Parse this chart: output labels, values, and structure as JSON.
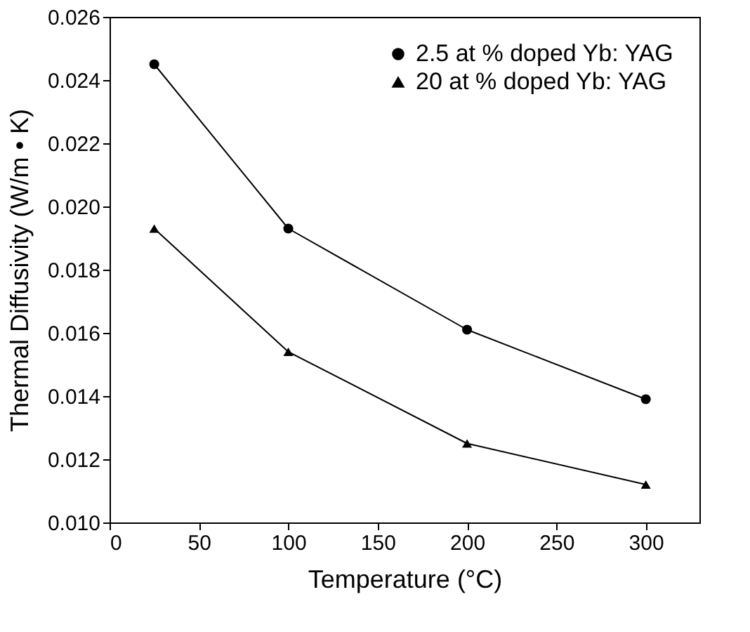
{
  "chart_data": {
    "type": "line",
    "xlabel": "Temperature  (°C)",
    "ylabel": "Thermal Diffusivity (W/m • K)",
    "x": [
      25,
      100,
      200,
      300
    ],
    "series": [
      {
        "name": "2.5 at % doped Yb: YAG",
        "color": "#000000",
        "marker": "circle",
        "values": [
          0.0245,
          0.0193,
          0.0161,
          0.0139
        ]
      },
      {
        "name": "20 at % doped Yb: YAG",
        "color": "#000000",
        "marker": "triangle",
        "values": [
          0.0193,
          0.0154,
          0.0125,
          0.0112
        ]
      }
    ],
    "xlim": [
      0,
      330
    ],
    "xticks": [
      0,
      50,
      100,
      150,
      200,
      250,
      300
    ],
    "ylim": [
      0.01,
      0.026
    ],
    "yticks": [
      {
        "value": 0.01,
        "label": "0.010"
      },
      {
        "value": 0.012,
        "label": "0.012"
      },
      {
        "value": 0.014,
        "label": "0.014"
      },
      {
        "value": 0.016,
        "label": "0.016"
      },
      {
        "value": 0.018,
        "label": "0.018"
      },
      {
        "value": 0.02,
        "label": "0.020"
      },
      {
        "value": 0.022,
        "label": "0.022"
      },
      {
        "value": 0.024,
        "label": "0.024"
      },
      {
        "value": 0.026,
        "label": "0.026"
      }
    ],
    "grid": false,
    "legend": "top right",
    "line_style": "solid"
  }
}
